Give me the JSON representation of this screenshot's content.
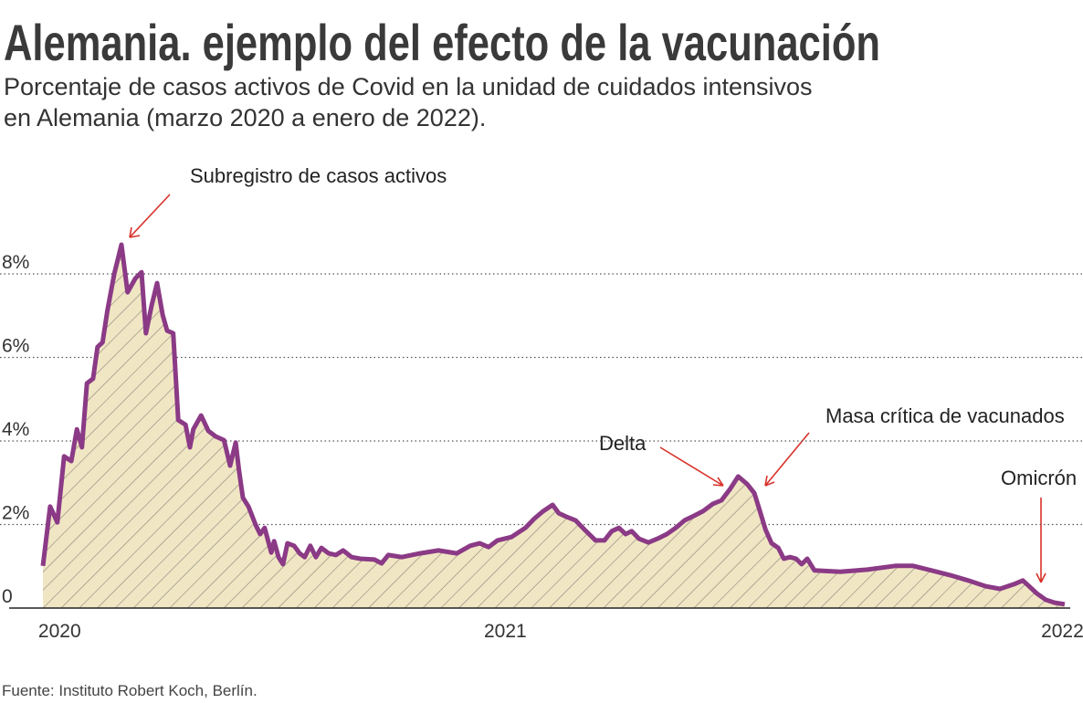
{
  "chart_data": {
    "type": "line",
    "title": "Alemania. ejemplo del efecto de la vacunación",
    "subtitle": [
      "Porcentaje de casos activos de Covid en la unidad de cuidados intensivos",
      "en Alemania (marzo 2020 a enero de 2022)."
    ],
    "source": "Fuente: Instituto Robert Koch, Berlín.",
    "annotations": [
      "Subregistro de casos activos",
      "Delta",
      "Masa crítica de vacunados",
      "Omicrón"
    ],
    "color": "#8b3a86",
    "fill_color": "#f0e6c4",
    "grid": true,
    "xlim": [
      2020.093,
      2022.037
    ],
    "xticks": [
      {
        "value": 2020.2,
        "label": "2020"
      },
      2021,
      2022
    ],
    "ylim": [
      0,
      10
    ],
    "yticks": [
      0,
      {
        "value": 2,
        "label": "2%"
      },
      {
        "value": 4,
        "label": "4%"
      },
      {
        "value": 6,
        "label": "6%"
      },
      {
        "value": 8,
        "label": "8%"
      }
    ],
    "x": [
      2020.17,
      2020.183,
      2020.196,
      2020.208,
      2020.221,
      2020.231,
      2020.24,
      2020.249,
      2020.26,
      2020.268,
      2020.277,
      2020.286,
      2020.298,
      2020.311,
      2020.322,
      2020.336,
      2020.347,
      2020.355,
      2020.365,
      2020.375,
      2020.385,
      2020.393,
      2020.404,
      2020.413,
      2020.426,
      2020.434,
      2020.44,
      2020.454,
      2020.467,
      2020.48,
      2020.495,
      2020.506,
      2020.516,
      2020.522,
      2020.529,
      2020.539,
      2020.552,
      2020.56,
      2020.568,
      2020.58,
      2020.585,
      2020.593,
      2020.601,
      2020.609,
      2020.621,
      2020.631,
      2020.64,
      2020.65,
      2020.66,
      2020.67,
      2020.683,
      2020.696,
      2020.709,
      2020.724,
      2020.74,
      2020.765,
      2020.778,
      2020.79,
      2020.814,
      2020.847,
      2020.88,
      2020.913,
      2020.937,
      2020.954,
      2020.97,
      2020.986,
      2021.011,
      2021.036,
      2021.052,
      2021.068,
      2021.085,
      2021.096,
      2021.109,
      2021.126,
      2021.142,
      2021.162,
      2021.178,
      2021.191,
      2021.204,
      2021.216,
      2021.227,
      2021.24,
      2021.257,
      2021.273,
      2021.29,
      2021.306,
      2021.322,
      2021.339,
      2021.355,
      2021.372,
      2021.388,
      2021.404,
      2021.418,
      2021.434,
      2021.447,
      2021.457,
      2021.467,
      2021.478,
      2021.49,
      2021.5,
      2021.511,
      2021.522,
      2021.532,
      2021.542,
      2021.555,
      2021.601,
      2021.65,
      2021.7,
      2021.732,
      2021.765,
      2021.798,
      2021.831,
      2021.863,
      2021.888,
      2021.913,
      2021.929,
      2021.942,
      2021.954,
      2021.97,
      2021.986,
      2022.004
    ],
    "values": [
      1.01,
      2.43,
      2.05,
      3.63,
      3.52,
      4.28,
      3.85,
      5.38,
      5.49,
      6.25,
      6.36,
      7.13,
      8.0,
      8.7,
      7.56,
      7.89,
      8.04,
      6.58,
      7.23,
      7.78,
      7.02,
      6.64,
      6.58,
      4.5,
      4.39,
      3.85,
      4.28,
      4.61,
      4.24,
      4.11,
      4.02,
      3.41,
      3.96,
      3.3,
      2.64,
      2.43,
      1.99,
      1.77,
      1.92,
      1.33,
      1.6,
      1.22,
      1.05,
      1.55,
      1.49,
      1.31,
      1.22,
      1.49,
      1.22,
      1.44,
      1.31,
      1.27,
      1.38,
      1.22,
      1.18,
      1.16,
      1.07,
      1.27,
      1.22,
      1.31,
      1.38,
      1.31,
      1.49,
      1.55,
      1.46,
      1.62,
      1.7,
      1.92,
      2.14,
      2.32,
      2.47,
      2.27,
      2.19,
      2.1,
      1.88,
      1.62,
      1.62,
      1.84,
      1.92,
      1.77,
      1.84,
      1.66,
      1.57,
      1.66,
      1.77,
      1.92,
      2.1,
      2.21,
      2.32,
      2.49,
      2.58,
      2.86,
      3.15,
      2.97,
      2.75,
      2.32,
      1.88,
      1.55,
      1.44,
      1.18,
      1.22,
      1.18,
      1.05,
      1.18,
      0.9,
      0.87,
      0.92,
      1.01,
      1.01,
      0.9,
      0.79,
      0.66,
      0.52,
      0.46,
      0.57,
      0.66,
      0.5,
      0.35,
      0.2,
      0.13,
      0.09
    ]
  }
}
